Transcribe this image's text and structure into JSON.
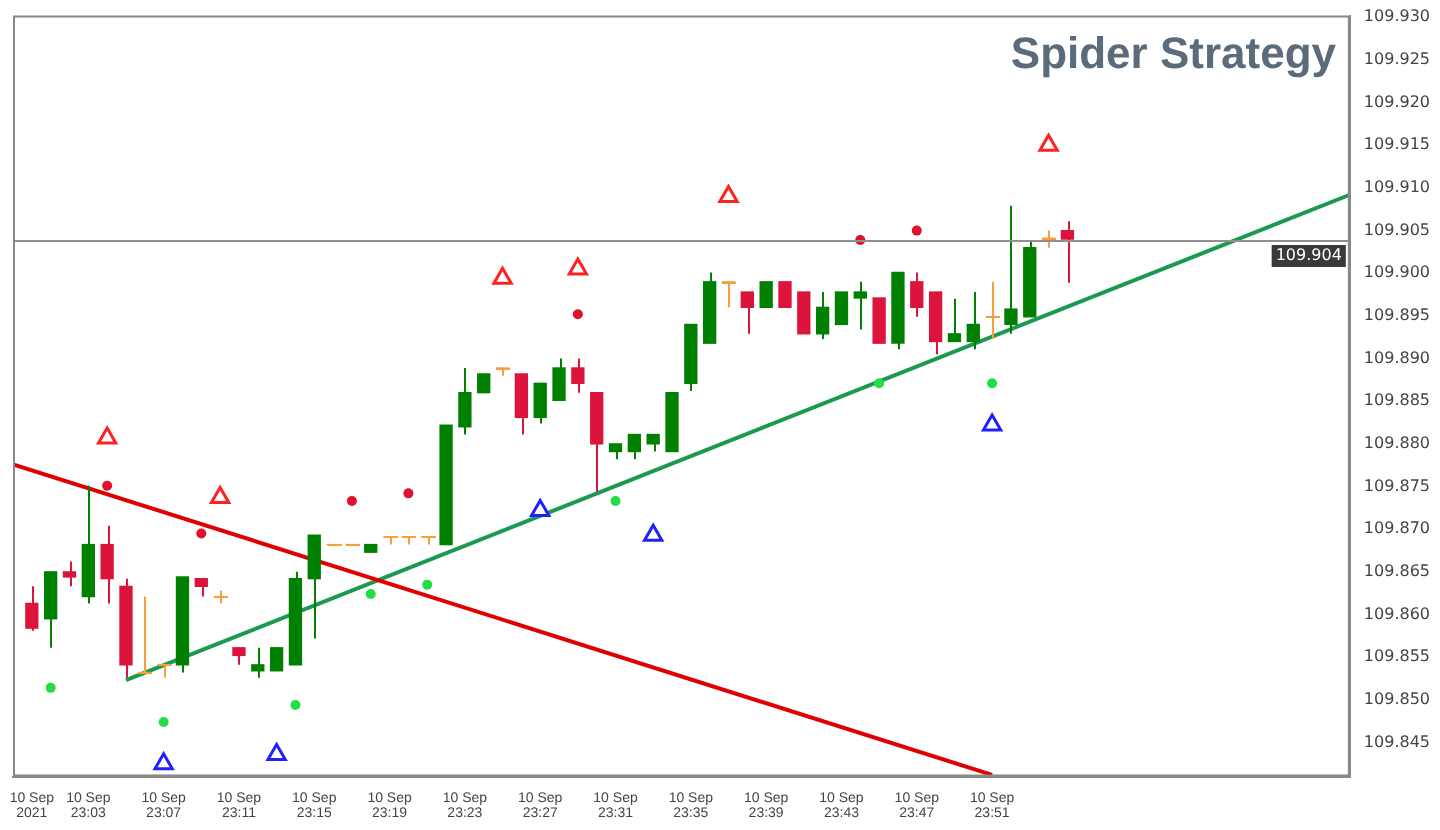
{
  "chart_data": {
    "type": "candlestick",
    "title": "Spider Strategy",
    "x": [
      "2021-09-10T23:00",
      "2021-09-10T23:01",
      "2021-09-10T23:02",
      "2021-09-10T23:03",
      "2021-09-10T23:04",
      "2021-09-10T23:05",
      "2021-09-10T23:06",
      "2021-09-10T23:07",
      "2021-09-10T23:08",
      "2021-09-10T23:09",
      "2021-09-10T23:10",
      "2021-09-10T23:11",
      "2021-09-10T23:12",
      "2021-09-10T23:13",
      "2021-09-10T23:14",
      "2021-09-10T23:15",
      "2021-09-10T23:16",
      "2021-09-10T23:17",
      "2021-09-10T23:18",
      "2021-09-10T23:19",
      "2021-09-10T23:20",
      "2021-09-10T23:21",
      "2021-09-10T23:22",
      "2021-09-10T23:23",
      "2021-09-10T23:24",
      "2021-09-10T23:25",
      "2021-09-10T23:26",
      "2021-09-10T23:27",
      "2021-09-10T23:28",
      "2021-09-10T23:29",
      "2021-09-10T23:30",
      "2021-09-10T23:31",
      "2021-09-10T23:32",
      "2021-09-10T23:33",
      "2021-09-10T23:34",
      "2021-09-10T23:35",
      "2021-09-10T23:36",
      "2021-09-10T23:37",
      "2021-09-10T23:38",
      "2021-09-10T23:39",
      "2021-09-10T23:40",
      "2021-09-10T23:41",
      "2021-09-10T23:42",
      "2021-09-10T23:43",
      "2021-09-10T23:44",
      "2021-09-10T23:45",
      "2021-09-10T23:46",
      "2021-09-10T23:47",
      "2021-09-10T23:48",
      "2021-09-10T23:49",
      "2021-09-10T23:50",
      "2021-09-10T23:51",
      "2021-09-10T23:52",
      "2021-09-10T23:53",
      "2021-09-10T23:54",
      "2021-09-10T23:55"
    ],
    "ohlc": [
      [
        109.8613,
        109.8633,
        109.8581,
        109.8584
      ],
      [
        109.8595,
        109.865,
        109.8561,
        109.865
      ],
      [
        109.865,
        109.8662,
        109.8633,
        109.8644
      ],
      [
        109.8621,
        109.8751,
        109.8613,
        109.8682
      ],
      [
        109.8682,
        109.8704,
        109.8613,
        109.8642
      ],
      [
        109.8633,
        109.8642,
        109.8526,
        109.8541
      ],
      [
        109.8532,
        109.8621,
        109.8532,
        109.8532
      ],
      [
        109.8541,
        109.8541,
        109.8526,
        109.8541
      ],
      [
        109.8541,
        109.8644,
        109.8532,
        109.8644
      ],
      [
        109.8642,
        109.8642,
        109.8621,
        109.8633
      ],
      [
        109.8621,
        109.8628,
        109.8613,
        109.8621
      ],
      [
        109.8561,
        109.8561,
        109.8541,
        109.8552
      ],
      [
        109.8534,
        109.8561,
        109.8526,
        109.8541
      ],
      [
        109.8534,
        109.8561,
        109.8534,
        109.8561
      ],
      [
        109.8541,
        109.865,
        109.8541,
        109.8642
      ],
      [
        109.8642,
        109.8693,
        109.8572,
        109.8693
      ],
      [
        109.8682,
        109.8682,
        109.8682,
        109.8682
      ],
      [
        109.8682,
        109.8682,
        109.8682,
        109.8682
      ],
      [
        109.8673,
        109.8682,
        109.8673,
        109.8682
      ],
      [
        109.8691,
        109.8691,
        109.8682,
        109.8691
      ],
      [
        109.8691,
        109.8691,
        109.8682,
        109.8691
      ],
      [
        109.8691,
        109.8691,
        109.8682,
        109.8691
      ],
      [
        109.8682,
        109.8822,
        109.8682,
        109.8822
      ],
      [
        109.882,
        109.8889,
        109.8811,
        109.886
      ],
      [
        109.886,
        109.8882,
        109.886,
        109.8882
      ],
      [
        109.8889,
        109.8889,
        109.888,
        109.8889
      ],
      [
        109.8882,
        109.8882,
        109.8811,
        109.8831
      ],
      [
        109.8831,
        109.8871,
        109.8824,
        109.8871
      ],
      [
        109.8851,
        109.89,
        109.8851,
        109.8889
      ],
      [
        109.8889,
        109.89,
        109.886,
        109.8871
      ],
      [
        109.886,
        109.886,
        109.8744,
        109.88
      ],
      [
        109.8791,
        109.88,
        109.8782,
        109.88
      ],
      [
        109.8791,
        109.8811,
        109.8782,
        109.8811
      ],
      [
        109.88,
        109.8811,
        109.8791,
        109.8811
      ],
      [
        109.8791,
        109.886,
        109.8791,
        109.886
      ],
      [
        109.8871,
        109.894,
        109.8862,
        109.894
      ],
      [
        109.8918,
        109.9001,
        109.8918,
        109.899
      ],
      [
        109.899,
        109.899,
        109.896,
        109.899
      ],
      [
        109.8978,
        109.8978,
        109.8929,
        109.896
      ],
      [
        109.896,
        109.899,
        109.896,
        109.899
      ],
      [
        109.899,
        109.899,
        109.896,
        109.896
      ],
      [
        109.8978,
        109.8978,
        109.8929,
        109.8929
      ],
      [
        109.8929,
        109.8978,
        109.8923,
        109.896
      ],
      [
        109.894,
        109.8978,
        109.894,
        109.8978
      ],
      [
        109.8971,
        109.899,
        109.8934,
        109.8978
      ],
      [
        109.8971,
        109.8971,
        109.8918,
        109.8918
      ],
      [
        109.8918,
        109.9001,
        109.8911,
        109.9001
      ],
      [
        109.899,
        109.9001,
        109.8949,
        109.896
      ],
      [
        109.8978,
        109.8978,
        109.8905,
        109.892
      ],
      [
        109.892,
        109.897,
        109.892,
        109.8929
      ],
      [
        109.892,
        109.8978,
        109.8911,
        109.894
      ],
      [
        109.8949,
        109.899,
        109.8923,
        109.8949
      ],
      [
        109.894,
        109.9079,
        109.8929,
        109.8958
      ],
      [
        109.8949,
        109.9039,
        109.8949,
        109.903
      ],
      [
        109.9041,
        109.905,
        109.903,
        109.9041
      ],
      [
        109.905,
        109.9061,
        109.8989,
        109.904
      ]
    ],
    "colors": [
      "#dc143c",
      "#008000",
      "#dc143c",
      "#008000",
      "#dc143c",
      "#dc143c",
      "#f5a03c",
      "#f5a03c",
      "#008000",
      "#dc143c",
      "#f5a03c",
      "#dc143c",
      "#008000",
      "#008000",
      "#008000",
      "#008000",
      "#f5a03c",
      "#f5a03c",
      "#008000",
      "#f5a03c",
      "#f5a03c",
      "#f5a03c",
      "#008000",
      "#008000",
      "#008000",
      "#f5a03c",
      "#dc143c",
      "#008000",
      "#008000",
      "#dc143c",
      "#dc143c",
      "#008000",
      "#008000",
      "#008000",
      "#008000",
      "#008000",
      "#008000",
      "#f5a03c",
      "#dc143c",
      "#008000",
      "#dc143c",
      "#dc143c",
      "#008000",
      "#008000",
      "#008000",
      "#dc143c",
      "#008000",
      "#dc143c",
      "#dc143c",
      "#008000",
      "#008000",
      "#f5a03c",
      "#008000",
      "#008000",
      "#f5a03c",
      "#dc143c"
    ],
    "series": [
      {
        "type": "line",
        "color": "#e00000",
        "x": [
          "2021-09-10T22:59",
          "2021-09-10T23:51"
        ],
        "values": [
          109.8776,
          109.8412
        ]
      },
      {
        "type": "line",
        "color": "#1a9a50",
        "x": [
          "2021-09-10T23:05",
          "2021-09-11T00:10"
        ],
        "values": [
          109.8523,
          109.9092
        ]
      },
      {
        "type": "scatter",
        "color": "#ff2020",
        "marker": "triangle",
        "x": [
          "2021-09-10T23:04",
          "2021-09-10T23:10",
          "2021-09-10T23:25",
          "2021-09-10T23:29",
          "2021-09-10T23:37",
          "2021-09-10T23:54"
        ],
        "values": [
          109.8807,
          109.8737,
          109.8994,
          109.9005,
          109.909,
          109.915
        ]
      },
      {
        "type": "scatter",
        "color": "#2020ff",
        "marker": "triangle",
        "x": [
          "2021-09-10T23:07",
          "2021-09-10T23:13",
          "2021-09-10T23:27",
          "2021-09-10T23:33",
          "2021-09-10T23:51"
        ],
        "values": [
          109.8425,
          109.8436,
          109.8722,
          109.8693,
          109.8822
        ]
      },
      {
        "type": "scatter",
        "color": "#e0102f",
        "marker": "circle",
        "x": [
          "2021-09-10T23:04",
          "2021-09-10T23:09",
          "2021-09-10T23:17",
          "2021-09-10T23:20",
          "2021-09-10T23:29",
          "2021-09-10T23:44",
          "2021-09-10T23:47"
        ],
        "values": [
          109.8751,
          109.8695,
          109.8733,
          109.8742,
          109.8952,
          109.9039,
          109.905
        ]
      },
      {
        "type": "scatter",
        "color": "#22dd44",
        "marker": "circle",
        "x": [
          "2021-09-10T23:01",
          "2021-09-10T23:07",
          "2021-09-10T23:14",
          "2021-09-10T23:18",
          "2021-09-10T23:21",
          "2021-09-10T23:31",
          "2021-09-10T23:45",
          "2021-09-10T23:51"
        ],
        "values": [
          109.8514,
          109.8474,
          109.8494,
          109.8624,
          109.8635,
          109.8733,
          109.8871,
          109.8871
        ]
      }
    ],
    "xlim": [
      "2021-09-10T22:59",
      "2021-09-11T00:10"
    ],
    "xticks": [
      {
        "value": "2021-09-10T23:00",
        "label": "10 Sep 2021"
      },
      {
        "value": "2021-09-10T23:03",
        "label": "10 Sep 23:03"
      },
      {
        "value": "2021-09-10T23:07",
        "label": "10 Sep 23:07"
      },
      {
        "value": "2021-09-10T23:11",
        "label": "10 Sep 23:11"
      },
      {
        "value": "2021-09-10T23:15",
        "label": "10 Sep 23:15"
      },
      {
        "value": "2021-09-10T23:19",
        "label": "10 Sep 23:19"
      },
      {
        "value": "2021-09-10T23:23",
        "label": "10 Sep 23:23"
      },
      {
        "value": "2021-09-10T23:27",
        "label": "10 Sep 23:27"
      },
      {
        "value": "2021-09-10T23:31",
        "label": "10 Sep 23:31"
      },
      {
        "value": "2021-09-10T23:35",
        "label": "10 Sep 23:35"
      },
      {
        "value": "2021-09-10T23:39",
        "label": "10 Sep 23:39"
      },
      {
        "value": "2021-09-10T23:43",
        "label": "10 Sep 23:43"
      },
      {
        "value": "2021-09-10T23:47",
        "label": "10 Sep 23:47"
      },
      {
        "value": "2021-09-10T23:51",
        "label": "10 Sep 23:51"
      }
    ],
    "ylim": [
      109.841,
      109.9302
    ],
    "yticks": [
      {
        "value": 109.845,
        "label": "109.845"
      },
      {
        "value": 109.85,
        "label": "109.850"
      },
      {
        "value": 109.855,
        "label": "109.855"
      },
      {
        "value": 109.86,
        "label": "109.860"
      },
      {
        "value": 109.865,
        "label": "109.865"
      },
      {
        "value": 109.87,
        "label": "109.870"
      },
      {
        "value": 109.875,
        "label": "109.875"
      },
      {
        "value": 109.88,
        "label": "109.880"
      },
      {
        "value": 109.885,
        "label": "109.885"
      },
      {
        "value": 109.89,
        "label": "109.890"
      },
      {
        "value": 109.895,
        "label": "109.895"
      },
      {
        "value": 109.9,
        "label": "109.900"
      },
      {
        "value": 109.905,
        "label": "109.905"
      },
      {
        "value": 109.91,
        "label": "109.910"
      },
      {
        "value": 109.915,
        "label": "109.915"
      },
      {
        "value": 109.92,
        "label": "109.920"
      },
      {
        "value": 109.925,
        "label": "109.925"
      },
      {
        "value": 109.93,
        "label": "109.930"
      }
    ],
    "ref_lines": [
      {
        "axis": "y",
        "value": 109.904,
        "label": "109.904",
        "color": "#909090"
      }
    ]
  }
}
